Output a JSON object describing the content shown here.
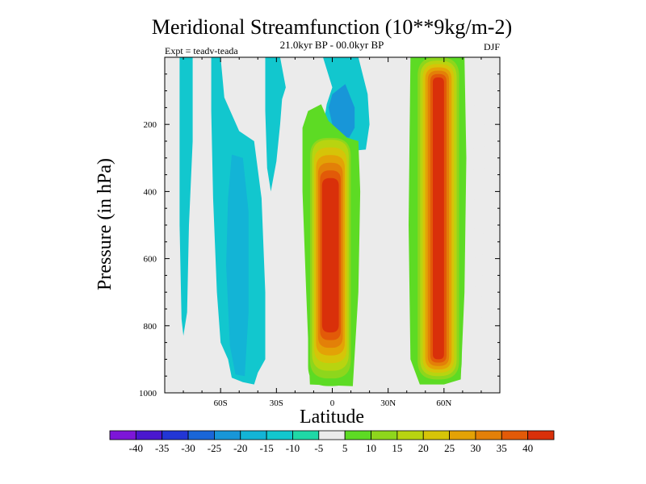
{
  "chart_data": {
    "type": "heatmap",
    "title": "Meridional Streamfunction (10**9kg/m-2)",
    "subtitle": "21.0kyr BP - 00.0kyr BP",
    "left_annotation": "Expt = teadv-teada",
    "right_annotation": "DJF",
    "xlabel": "Latitude",
    "ylabel": "Pressure (in hPa)",
    "x_range": [
      -90,
      90
    ],
    "y_range": [
      0,
      1000
    ],
    "y_reversed": true,
    "x_ticks": [
      {
        "value": -60,
        "label": "60S"
      },
      {
        "value": -30,
        "label": "30S"
      },
      {
        "value": 0,
        "label": "0"
      },
      {
        "value": 30,
        "label": "30N"
      },
      {
        "value": 60,
        "label": "60N"
      }
    ],
    "y_ticks": [
      {
        "value": 200,
        "label": "200"
      },
      {
        "value": 400,
        "label": "400"
      },
      {
        "value": 600,
        "label": "600"
      },
      {
        "value": 800,
        "label": "800"
      },
      {
        "value": 1000,
        "label": "1000"
      }
    ],
    "colorbar": {
      "labels": [
        "-40",
        "-35",
        "-30",
        "-25",
        "-20",
        "-15",
        "-10",
        "-5",
        "5",
        "10",
        "15",
        "20",
        "25",
        "30",
        "35",
        "40"
      ],
      "colors": [
        "#7d16d8",
        "#4a17cf",
        "#2236d5",
        "#1a66d8",
        "#1896d8",
        "#13b4d6",
        "#12c7ce",
        "#1fd8a6",
        "#ebebeb",
        "#5ddb24",
        "#8ed61c",
        "#b8d410",
        "#d6c408",
        "#e3a206",
        "#e38008",
        "#e25a08",
        "#d9300a"
      ]
    },
    "regions": [
      {
        "name": "sh-polar-band",
        "value": -10,
        "lat": [
          -82,
          -74
        ],
        "p": [
          0,
          830
        ]
      },
      {
        "name": "sh-midlat-band",
        "value": -10,
        "lat": [
          -65,
          -35
        ],
        "p": [
          0,
          975
        ]
      },
      {
        "name": "sh-midlat-core",
        "value": -15,
        "lat": [
          -57,
          -45
        ],
        "p": [
          290,
          950
        ]
      },
      {
        "name": "sh-tropics-small",
        "value": -10,
        "lat": [
          -36,
          -24
        ],
        "p": [
          0,
          400
        ]
      },
      {
        "name": "upper-tropics",
        "value": -10,
        "lat": [
          -5,
          20
        ],
        "p": [
          0,
          280
        ]
      },
      {
        "name": "upper-tropics-core",
        "value": -20,
        "lat": [
          -2,
          12
        ],
        "p": [
          80,
          240
        ]
      },
      {
        "name": "tropical-cell",
        "value": 40,
        "lat": [
          -10,
          10
        ],
        "p": [
          160,
          980
        ]
      },
      {
        "name": "nh-midlat-cell",
        "value": 40,
        "lat": [
          45,
          70
        ],
        "p": [
          0,
          975
        ]
      },
      {
        "name": "nh-polar-band",
        "value": 5,
        "lat": [
          76,
          82
        ],
        "p": [
          0,
          800
        ]
      }
    ]
  }
}
